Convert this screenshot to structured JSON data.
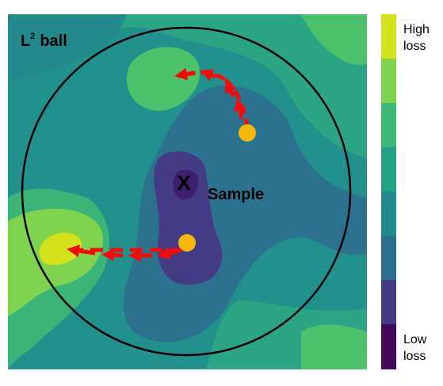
{
  "ball_label": {
    "letter": "L",
    "exponent": "2",
    "word": "ball"
  },
  "center_mark": "X",
  "center_label": "Sample",
  "colorbar": {
    "top_label": [
      "High",
      "loss"
    ],
    "bottom_label": [
      "Low",
      "loss"
    ]
  }
}
